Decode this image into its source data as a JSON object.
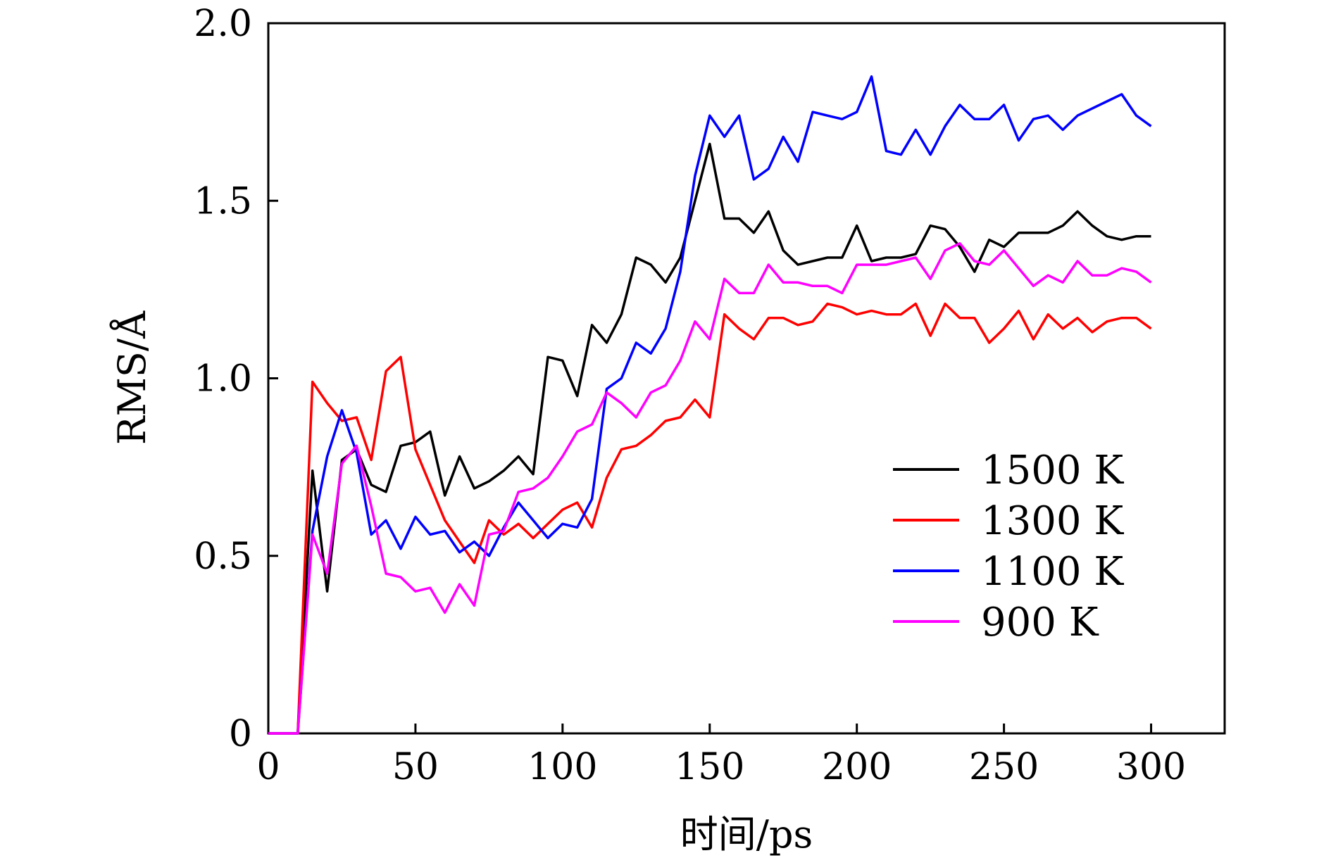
{
  "chart_data": {
    "type": "line",
    "title": "",
    "xlabel": "时间/ps",
    "ylabel": "RMS/Å",
    "xlim": [
      0,
      325
    ],
    "ylim": [
      0,
      2.0
    ],
    "xticks": [
      0,
      50,
      100,
      150,
      200,
      250,
      300
    ],
    "xtick_labels": [
      "0",
      "50",
      "100",
      "150",
      "200",
      "250",
      "300"
    ],
    "yticks": [
      0,
      0.5,
      1.0,
      1.5,
      2.0
    ],
    "ytick_labels": [
      "0",
      "0.5",
      "1.0",
      "1.5",
      "2.0"
    ],
    "grid": false,
    "legend_position": "lower-right",
    "x": [
      0,
      5,
      10,
      15,
      20,
      25,
      30,
      35,
      40,
      45,
      50,
      55,
      60,
      65,
      70,
      75,
      80,
      85,
      90,
      95,
      100,
      105,
      110,
      115,
      120,
      125,
      130,
      135,
      140,
      145,
      150,
      155,
      160,
      165,
      170,
      175,
      180,
      185,
      190,
      195,
      200,
      205,
      210,
      215,
      220,
      225,
      230,
      235,
      240,
      245,
      250,
      255,
      260,
      265,
      270,
      275,
      280,
      285,
      290,
      295,
      300
    ],
    "series": [
      {
        "name": "1500 K",
        "color": "#000000",
        "values": [
          0,
          0,
          0,
          0.74,
          0.4,
          0.77,
          0.8,
          0.7,
          0.68,
          0.81,
          0.82,
          0.85,
          0.67,
          0.78,
          0.69,
          0.71,
          0.74,
          0.78,
          0.73,
          1.06,
          1.05,
          0.95,
          1.15,
          1.1,
          1.18,
          1.34,
          1.32,
          1.27,
          1.34,
          1.5,
          1.66,
          1.45,
          1.45,
          1.41,
          1.47,
          1.36,
          1.32,
          1.33,
          1.34,
          1.34,
          1.43,
          1.33,
          1.34,
          1.34,
          1.35,
          1.43,
          1.42,
          1.37,
          1.3,
          1.39,
          1.37,
          1.41,
          1.41,
          1.41,
          1.43,
          1.47,
          1.43,
          1.4,
          1.39,
          1.4,
          1.4
        ]
      },
      {
        "name": "1300 K",
        "color": "#ff0000",
        "values": [
          0,
          0,
          0,
          0.99,
          0.93,
          0.88,
          0.89,
          0.77,
          1.02,
          1.06,
          0.8,
          0.7,
          0.6,
          0.54,
          0.48,
          0.6,
          0.56,
          0.59,
          0.55,
          0.59,
          0.63,
          0.65,
          0.58,
          0.72,
          0.8,
          0.81,
          0.84,
          0.88,
          0.89,
          0.94,
          0.89,
          1.18,
          1.14,
          1.11,
          1.17,
          1.17,
          1.15,
          1.16,
          1.21,
          1.2,
          1.18,
          1.19,
          1.18,
          1.18,
          1.21,
          1.12,
          1.21,
          1.17,
          1.17,
          1.1,
          1.14,
          1.19,
          1.11,
          1.18,
          1.14,
          1.17,
          1.13,
          1.16,
          1.17,
          1.17,
          1.14
        ]
      },
      {
        "name": "1100 K",
        "color": "#0000ff",
        "values": [
          0,
          0,
          0,
          0.57,
          0.78,
          0.91,
          0.79,
          0.56,
          0.6,
          0.52,
          0.61,
          0.56,
          0.57,
          0.51,
          0.54,
          0.5,
          0.58,
          0.65,
          0.6,
          0.55,
          0.59,
          0.58,
          0.66,
          0.97,
          1.0,
          1.1,
          1.07,
          1.14,
          1.3,
          1.57,
          1.74,
          1.68,
          1.74,
          1.56,
          1.59,
          1.68,
          1.61,
          1.75,
          1.74,
          1.73,
          1.75,
          1.85,
          1.64,
          1.63,
          1.7,
          1.63,
          1.71,
          1.77,
          1.73,
          1.73,
          1.77,
          1.67,
          1.73,
          1.74,
          1.7,
          1.74,
          1.76,
          1.78,
          1.8,
          1.74,
          1.71
        ]
      },
      {
        "name": "900 K",
        "color": "#ff00ff",
        "values": [
          0,
          0,
          0,
          0.56,
          0.45,
          0.76,
          0.81,
          0.64,
          0.45,
          0.44,
          0.4,
          0.41,
          0.34,
          0.42,
          0.36,
          0.56,
          0.57,
          0.68,
          0.69,
          0.72,
          0.78,
          0.85,
          0.87,
          0.96,
          0.93,
          0.89,
          0.96,
          0.98,
          1.05,
          1.16,
          1.11,
          1.28,
          1.24,
          1.24,
          1.32,
          1.27,
          1.27,
          1.26,
          1.26,
          1.24,
          1.32,
          1.32,
          1.32,
          1.33,
          1.34,
          1.28,
          1.36,
          1.38,
          1.33,
          1.32,
          1.36,
          1.31,
          1.26,
          1.29,
          1.27,
          1.33,
          1.29,
          1.29,
          1.31,
          1.3,
          1.27
        ]
      }
    ]
  }
}
